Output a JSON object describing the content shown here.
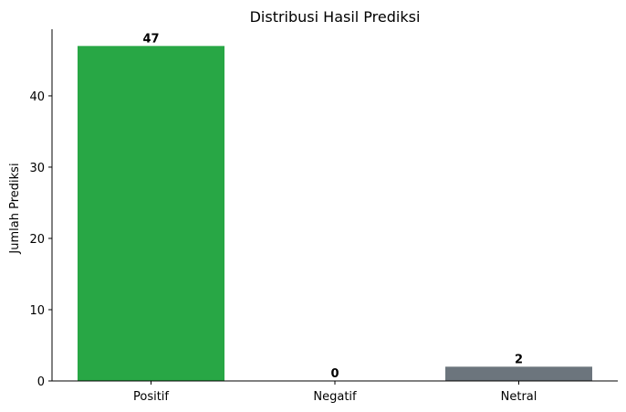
{
  "chart_data": {
    "type": "bar",
    "title": "Distribusi Hasil Prediksi",
    "xlabel": "",
    "ylabel": "Jumlah Prediksi",
    "categories": [
      "Positif",
      "Negatif",
      "Netral"
    ],
    "values": [
      47,
      0,
      2
    ],
    "data_labels": [
      "47",
      "0",
      "2"
    ],
    "colors": [
      "#28a745",
      "#dc3545",
      "#6c757d"
    ],
    "ylim": [
      0,
      49.35
    ],
    "yticks": [
      0,
      10,
      20,
      30,
      40
    ],
    "grid": false,
    "legend": "none"
  }
}
